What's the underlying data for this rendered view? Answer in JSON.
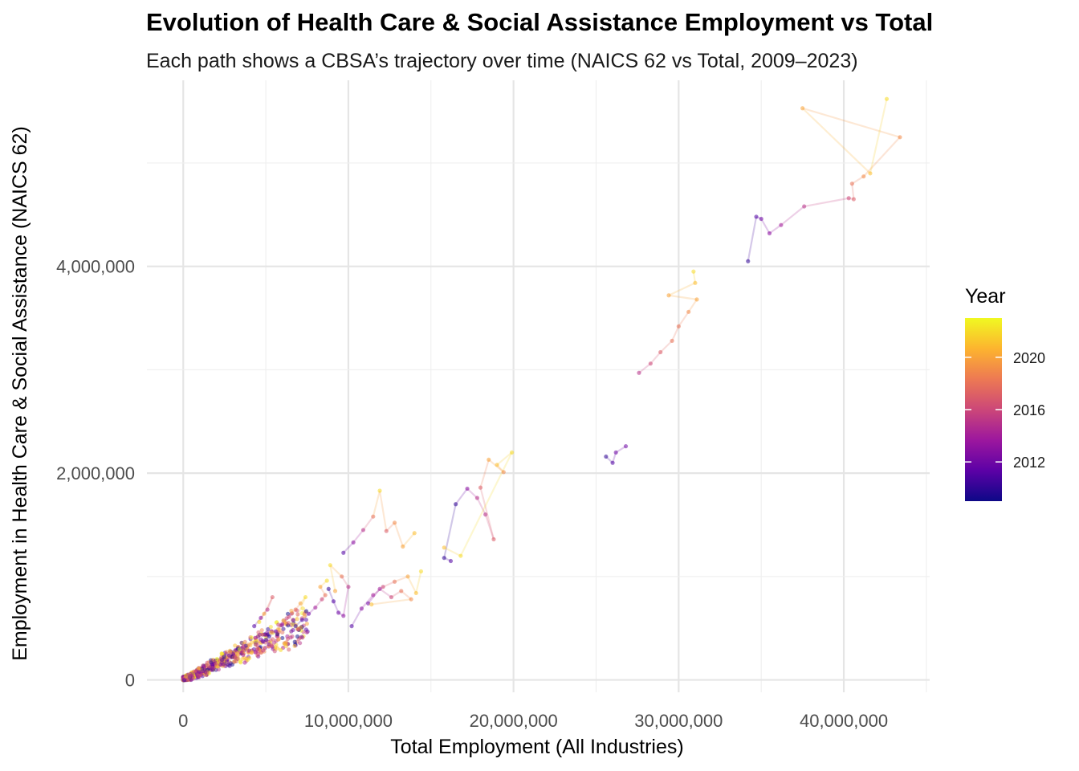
{
  "chart_data": {
    "type": "scatter",
    "title": "Evolution of Health Care & Social Assistance Employment vs Total",
    "subtitle": "Each path shows a CBSA’s trajectory over time (NAICS 62 vs Total, 2009–2023)",
    "xlabel": "Total Employment (All Industries)",
    "ylabel": "Employment in Health Care & Social Assistance (NAICS 62)",
    "xlim": [
      -2200000,
      45200000
    ],
    "ylim": [
      -120000,
      5800000
    ],
    "x_ticks": [
      0,
      10000000,
      20000000,
      30000000,
      40000000
    ],
    "x_tick_labels": [
      "0",
      "10,000,000",
      "20,000,000",
      "30,000,000",
      "40,000,000"
    ],
    "y_ticks": [
      0,
      2000000,
      4000000
    ],
    "y_tick_labels": [
      "0",
      "2,000,000",
      "4,000,000"
    ],
    "grid": true,
    "color_scale": {
      "name": "Year",
      "palette": "plasma",
      "range": [
        2009,
        2023
      ],
      "ticks": [
        2012,
        2016,
        2020
      ],
      "tick_labels": [
        "2012",
        "2016",
        "2020"
      ],
      "colors": [
        "#0d0887",
        "#5c01a6",
        "#9c179e",
        "#cc4778",
        "#ed7953",
        "#fdb42f",
        "#f0f921"
      ],
      "legend_position": "right"
    },
    "series": [
      {
        "points": [
          {
            "x": 34200000,
            "y": 4050000,
            "year": 2010
          },
          {
            "x": 34700000,
            "y": 4480000,
            "year": 2011
          },
          {
            "x": 35000000,
            "y": 4460000,
            "year": 2012
          },
          {
            "x": 35500000,
            "y": 4320000,
            "year": 2013
          },
          {
            "x": 36200000,
            "y": 4400000,
            "year": 2014
          },
          {
            "x": 37600000,
            "y": 4580000,
            "year": 2015
          },
          {
            "x": 40300000,
            "y": 4660000,
            "year": 2016
          },
          {
            "x": 40600000,
            "y": 4650000,
            "year": 2017
          },
          {
            "x": 40500000,
            "y": 4800000,
            "year": 2018
          },
          {
            "x": 41200000,
            "y": 4870000,
            "year": 2019
          },
          {
            "x": 43400000,
            "y": 5250000,
            "year": 2019
          },
          {
            "x": 37500000,
            "y": 5530000,
            "year": 2020
          },
          {
            "x": 41600000,
            "y": 4900000,
            "year": 2021
          },
          {
            "x": 42600000,
            "y": 5620000,
            "year": 2022
          }
        ]
      },
      {
        "points": [
          {
            "x": 27600000,
            "y": 2970000,
            "year": 2015
          },
          {
            "x": 28300000,
            "y": 3060000,
            "year": 2016
          },
          {
            "x": 28900000,
            "y": 3170000,
            "year": 2017
          },
          {
            "x": 29600000,
            "y": 3280000,
            "year": 2018
          },
          {
            "x": 30000000,
            "y": 3420000,
            "year": 2018
          },
          {
            "x": 30600000,
            "y": 3560000,
            "year": 2019
          },
          {
            "x": 31100000,
            "y": 3680000,
            "year": 2020
          },
          {
            "x": 29400000,
            "y": 3720000,
            "year": 2020
          },
          {
            "x": 31000000,
            "y": 3840000,
            "year": 2021
          },
          {
            "x": 30900000,
            "y": 3950000,
            "year": 2022
          }
        ]
      },
      {
        "points": [
          {
            "x": 25600000,
            "y": 2160000,
            "year": 2010
          },
          {
            "x": 26000000,
            "y": 2100000,
            "year": 2011
          },
          {
            "x": 26200000,
            "y": 2200000,
            "year": 2012
          },
          {
            "x": 26800000,
            "y": 2260000,
            "year": 2012
          }
        ]
      },
      {
        "points": [
          {
            "x": 16200000,
            "y": 1150000,
            "year": 2011
          },
          {
            "x": 15800000,
            "y": 1180000,
            "year": 2010
          },
          {
            "x": 16500000,
            "y": 1700000,
            "year": 2010
          },
          {
            "x": 17200000,
            "y": 1850000,
            "year": 2013
          },
          {
            "x": 17800000,
            "y": 1760000,
            "year": 2015
          },
          {
            "x": 18300000,
            "y": 1600000,
            "year": 2015
          },
          {
            "x": 18800000,
            "y": 1360000,
            "year": 2017
          },
          {
            "x": 18000000,
            "y": 1860000,
            "year": 2017
          },
          {
            "x": 18500000,
            "y": 2130000,
            "year": 2020
          },
          {
            "x": 19400000,
            "y": 2010000,
            "year": 2019
          },
          {
            "x": 19000000,
            "y": 2080000,
            "year": 2021
          },
          {
            "x": 19900000,
            "y": 2200000,
            "year": 2022
          },
          {
            "x": 16800000,
            "y": 1200000,
            "year": 2022
          },
          {
            "x": 15800000,
            "y": 1280000,
            "year": 2021
          }
        ]
      },
      {
        "points": [
          {
            "x": 9700000,
            "y": 1230000,
            "year": 2011
          },
          {
            "x": 10300000,
            "y": 1330000,
            "year": 2013
          },
          {
            "x": 10900000,
            "y": 1450000,
            "year": 2015
          },
          {
            "x": 11500000,
            "y": 1580000,
            "year": 2018
          },
          {
            "x": 11900000,
            "y": 1830000,
            "year": 2022
          },
          {
            "x": 12300000,
            "y": 1440000,
            "year": 2017
          },
          {
            "x": 12800000,
            "y": 1520000,
            "year": 2019
          },
          {
            "x": 13300000,
            "y": 1290000,
            "year": 2020
          },
          {
            "x": 14000000,
            "y": 1420000,
            "year": 2021
          }
        ]
      },
      {
        "points": [
          {
            "x": 10200000,
            "y": 520000,
            "year": 2011
          },
          {
            "x": 10800000,
            "y": 690000,
            "year": 2013
          },
          {
            "x": 11500000,
            "y": 820000,
            "year": 2014
          },
          {
            "x": 12100000,
            "y": 900000,
            "year": 2016
          },
          {
            "x": 12800000,
            "y": 950000,
            "year": 2018
          },
          {
            "x": 13600000,
            "y": 1000000,
            "year": 2020
          },
          {
            "x": 14100000,
            "y": 840000,
            "year": 2021
          },
          {
            "x": 14400000,
            "y": 1050000,
            "year": 2022
          }
        ]
      },
      {
        "points": [
          {
            "x": 11200000,
            "y": 740000,
            "year": 2012
          },
          {
            "x": 11900000,
            "y": 880000,
            "year": 2014
          },
          {
            "x": 12600000,
            "y": 800000,
            "year": 2016
          },
          {
            "x": 13200000,
            "y": 860000,
            "year": 2018
          },
          {
            "x": 13800000,
            "y": 780000,
            "year": 2019
          },
          {
            "x": 11400000,
            "y": 730000,
            "year": 2021
          }
        ]
      },
      {
        "points": [
          {
            "x": 8800000,
            "y": 880000,
            "year": 2010
          },
          {
            "x": 9100000,
            "y": 760000,
            "year": 2011
          },
          {
            "x": 9400000,
            "y": 650000,
            "year": 2012
          },
          {
            "x": 9700000,
            "y": 620000,
            "year": 2013
          },
          {
            "x": 10000000,
            "y": 900000,
            "year": 2015
          },
          {
            "x": 9600000,
            "y": 1000000,
            "year": 2018
          },
          {
            "x": 8900000,
            "y": 1110000,
            "year": 2022
          },
          {
            "x": 9200000,
            "y": 860000,
            "year": 2020
          }
        ]
      },
      {
        "points": [
          {
            "x": 6800000,
            "y": 520000,
            "year": 2010
          },
          {
            "x": 7200000,
            "y": 580000,
            "year": 2011
          },
          {
            "x": 7600000,
            "y": 640000,
            "year": 2012
          },
          {
            "x": 8000000,
            "y": 700000,
            "year": 2014
          },
          {
            "x": 8400000,
            "y": 780000,
            "year": 2016
          },
          {
            "x": 8600000,
            "y": 820000,
            "year": 2018
          },
          {
            "x": 8300000,
            "y": 900000,
            "year": 2020
          },
          {
            "x": 8700000,
            "y": 960000,
            "year": 2022
          }
        ]
      },
      {
        "points": [
          {
            "x": 5200000,
            "y": 420000,
            "year": 2010
          },
          {
            "x": 5600000,
            "y": 470000,
            "year": 2012
          },
          {
            "x": 6000000,
            "y": 540000,
            "year": 2014
          },
          {
            "x": 6400000,
            "y": 610000,
            "year": 2016
          },
          {
            "x": 6800000,
            "y": 680000,
            "year": 2018
          },
          {
            "x": 7100000,
            "y": 740000,
            "year": 2020
          },
          {
            "x": 7400000,
            "y": 800000,
            "year": 2022
          },
          {
            "x": 6200000,
            "y": 350000,
            "year": 2021
          },
          {
            "x": 5900000,
            "y": 290000,
            "year": 2022
          }
        ]
      },
      {
        "points": [
          {
            "x": 4300000,
            "y": 520000,
            "year": 2011
          },
          {
            "x": 4700000,
            "y": 600000,
            "year": 2013
          },
          {
            "x": 5100000,
            "y": 680000,
            "year": 2015
          },
          {
            "x": 5400000,
            "y": 800000,
            "year": 2017
          },
          {
            "x": 4900000,
            "y": 640000,
            "year": 2020
          },
          {
            "x": 4600000,
            "y": 560000,
            "year": 2022
          }
        ]
      }
    ]
  }
}
